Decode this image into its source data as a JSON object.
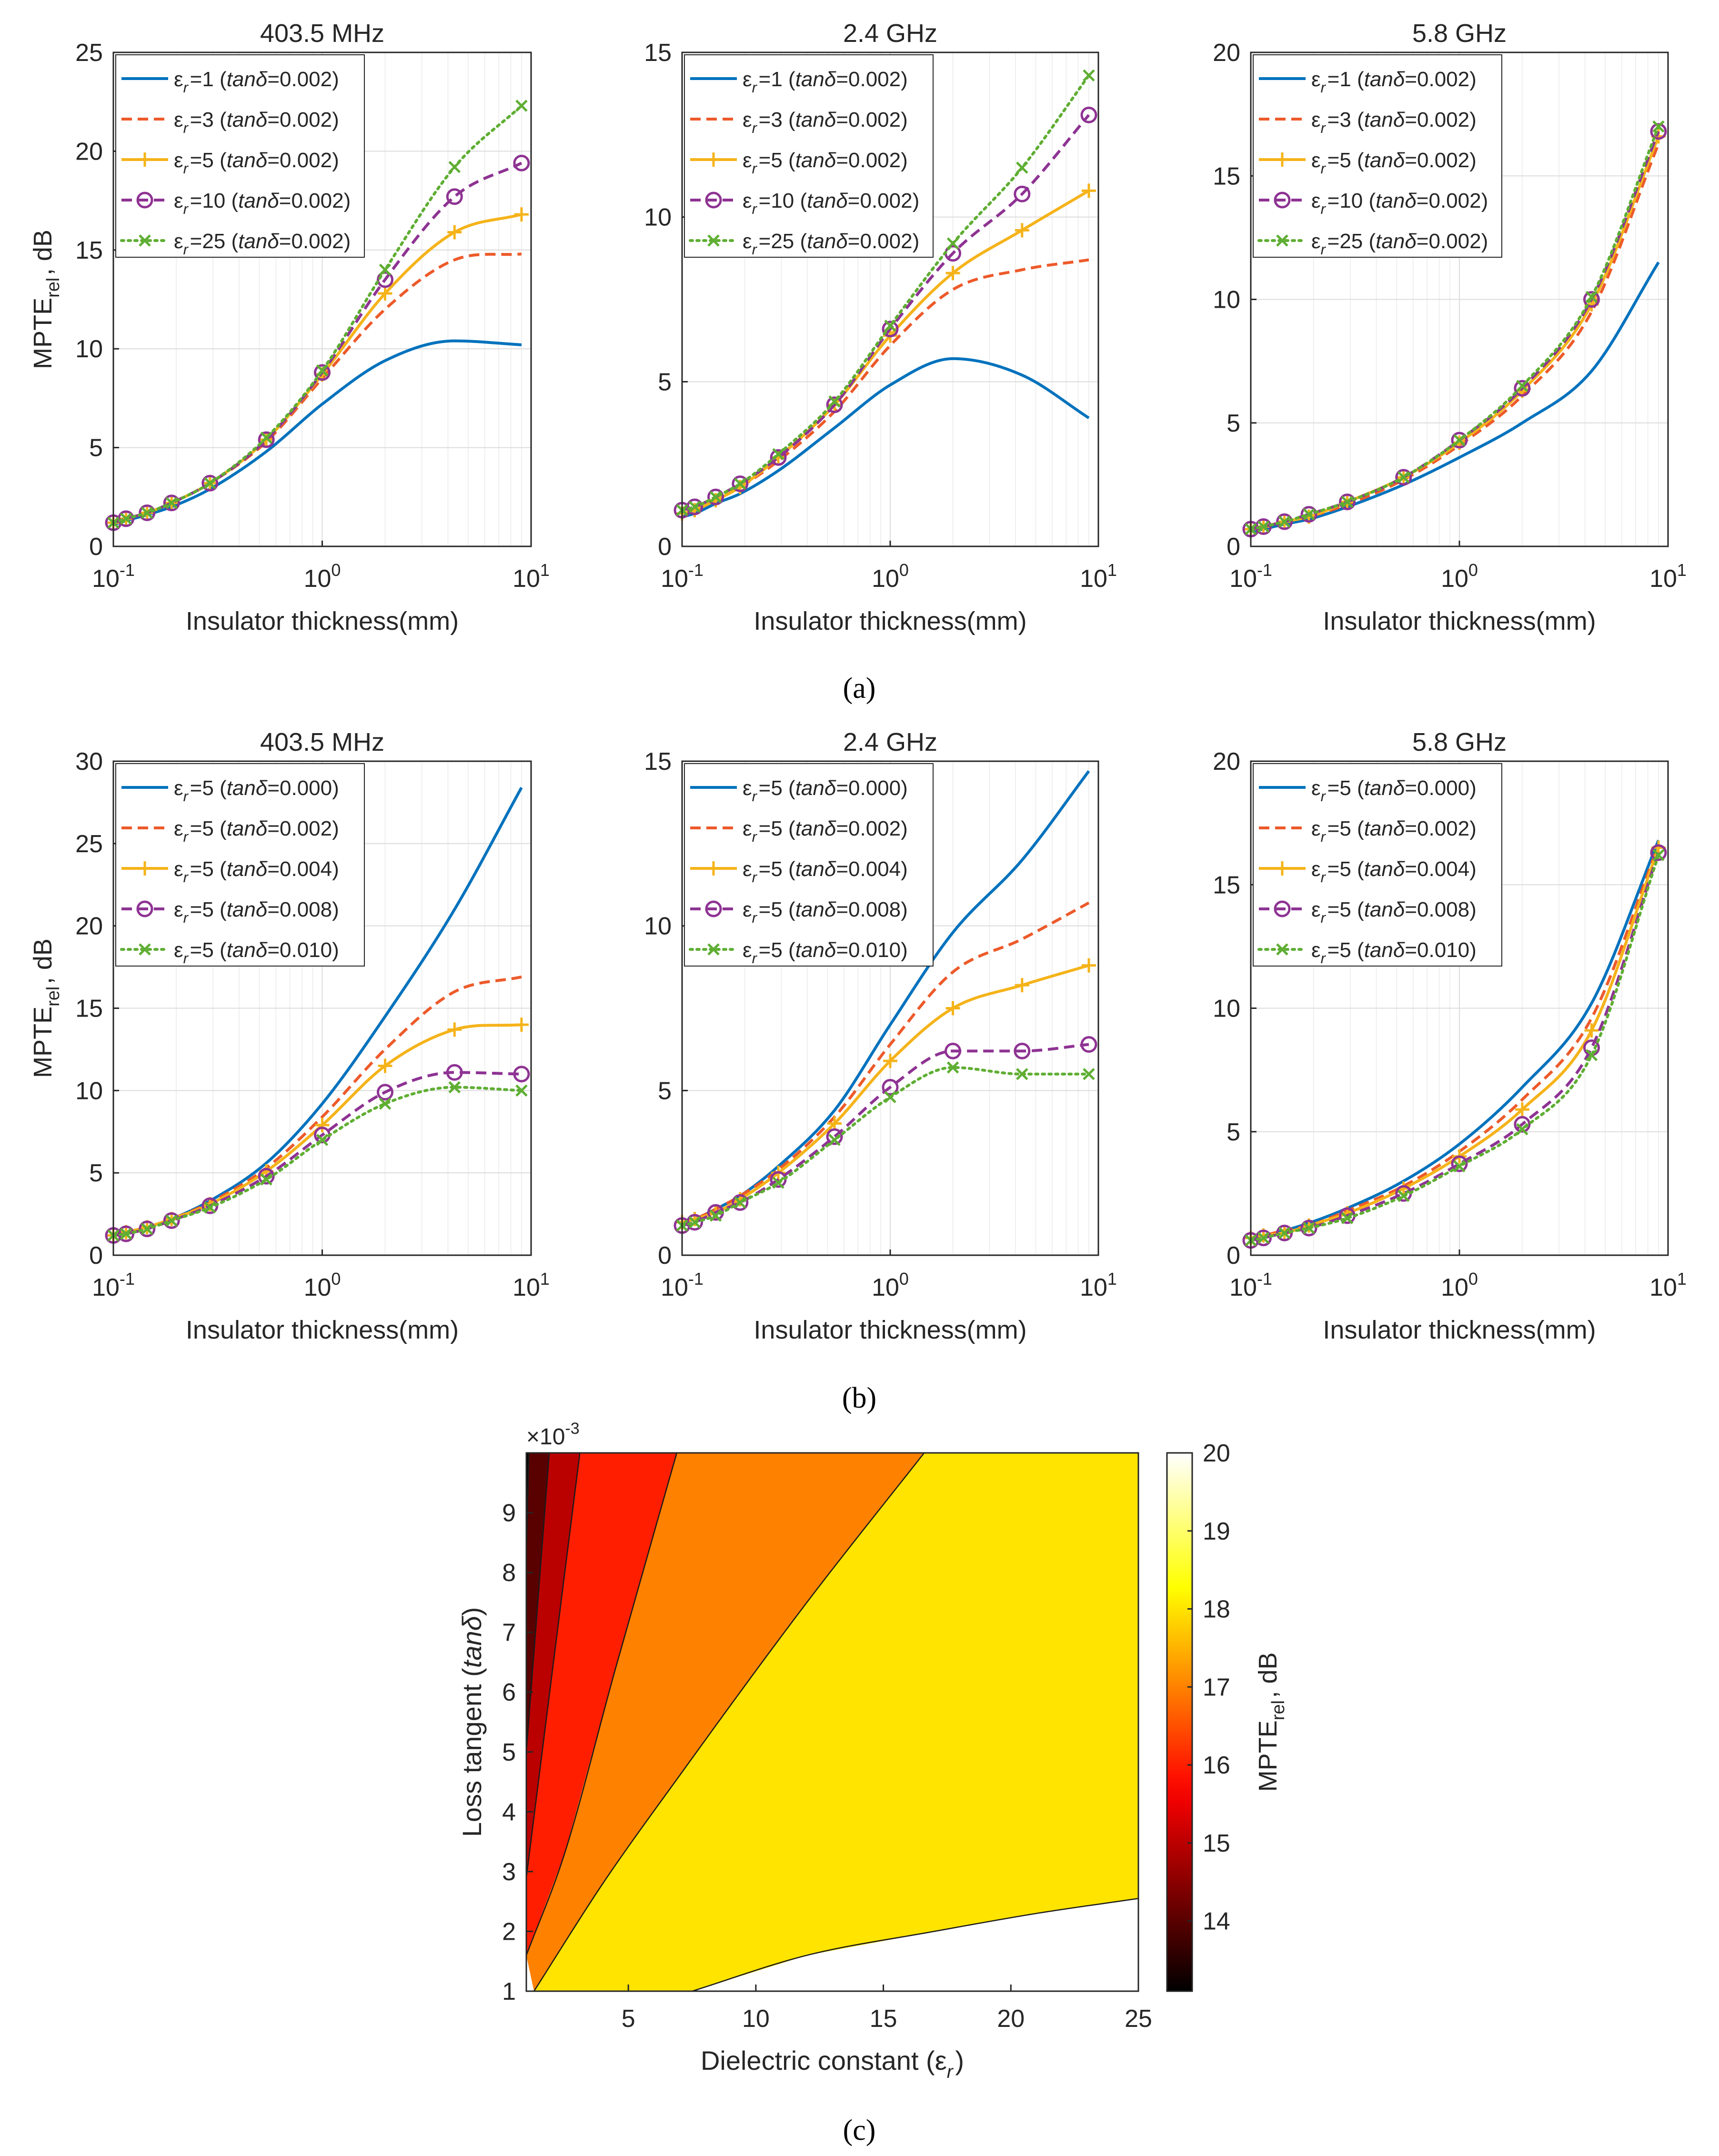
{
  "captions": {
    "a": "(a)",
    "b": "(b)",
    "c": "(c)"
  },
  "colors": {
    "blue": "#0072BD",
    "orange": "#ED5A2A",
    "gold": "#F5B31A",
    "purple": "#8E3393",
    "green": "#5FAE33"
  },
  "chart_data": [
    {
      "type": "line",
      "title": "403.5 MHz",
      "xlabel": "Insulator thickness(mm)",
      "ylabel": "MPTE_rel, dB",
      "xscale": "log",
      "xlim": [
        0.1,
        10
      ],
      "ylim": [
        0,
        25
      ],
      "yticks": [
        0,
        5,
        10,
        15,
        20,
        25
      ],
      "xtick_labels": [
        "10^-1",
        "10^0",
        "10^1"
      ],
      "grid": true,
      "legend": "top-left",
      "x": [
        0.1,
        0.115,
        0.145,
        0.19,
        0.29,
        0.54,
        1.0,
        2.0,
        4.3,
        9.0
      ],
      "series": [
        {
          "name": "εr=1 (tanδ=0.002)",
          "style": "solid",
          "marker": "none",
          "color": "#0072BD",
          "values": [
            1.1,
            1.3,
            1.6,
            2.0,
            2.9,
            4.8,
            7.2,
            9.4,
            10.4,
            10.2
          ]
        },
        {
          "name": "εr=3 (tanδ=0.002)",
          "style": "dashed",
          "marker": "none",
          "color": "#ED5A2A",
          "values": [
            1.2,
            1.4,
            1.7,
            2.2,
            3.2,
            5.3,
            8.5,
            12.0,
            14.5,
            14.8
          ]
        },
        {
          "name": "εr=5 (tanδ=0.002)",
          "style": "solid",
          "marker": "plus",
          "color": "#F5B31A",
          "values": [
            1.2,
            1.4,
            1.7,
            2.2,
            3.2,
            5.4,
            8.7,
            12.8,
            15.9,
            16.8
          ]
        },
        {
          "name": "εr=10 (tanδ=0.002)",
          "style": "dashed",
          "marker": "circle",
          "color": "#8E3393",
          "values": [
            1.2,
            1.4,
            1.7,
            2.2,
            3.2,
            5.4,
            8.8,
            13.5,
            17.7,
            19.4
          ]
        },
        {
          "name": "εr=25 (tanδ=0.002)",
          "style": "dotted",
          "marker": "x",
          "color": "#5FAE33",
          "values": [
            1.2,
            1.4,
            1.7,
            2.2,
            3.2,
            5.5,
            8.9,
            14.0,
            19.2,
            22.3
          ]
        }
      ]
    },
    {
      "type": "line",
      "title": "2.4 GHz",
      "xlabel": "Insulator thickness(mm)",
      "ylabel": "",
      "xscale": "log",
      "xlim": [
        0.1,
        10
      ],
      "ylim": [
        0,
        15
      ],
      "yticks": [
        0,
        5,
        10,
        15
      ],
      "xtick_labels": [
        "10^-1",
        "10^0",
        "10^1"
      ],
      "grid": true,
      "legend": "top-left",
      "x": [
        0.1,
        0.115,
        0.145,
        0.19,
        0.29,
        0.54,
        1.0,
        2.0,
        4.3,
        9.0
      ],
      "series": [
        {
          "name": "εr=1 (tanδ=0.002)",
          "style": "solid",
          "marker": "none",
          "color": "#0072BD",
          "values": [
            0.9,
            1.0,
            1.3,
            1.6,
            2.3,
            3.6,
            4.9,
            5.7,
            5.2,
            3.9
          ]
        },
        {
          "name": "εr=3 (tanδ=0.002)",
          "style": "dashed",
          "marker": "none",
          "color": "#ED5A2A",
          "values": [
            1.0,
            1.1,
            1.4,
            1.8,
            2.6,
            4.1,
            6.1,
            7.8,
            8.4,
            8.7
          ]
        },
        {
          "name": "εr=5 (tanδ=0.002)",
          "style": "solid",
          "marker": "plus",
          "color": "#F5B31A",
          "values": [
            1.0,
            1.1,
            1.4,
            1.8,
            2.7,
            4.3,
            6.4,
            8.3,
            9.6,
            10.8
          ]
        },
        {
          "name": "εr=10 (tanδ=0.002)",
          "style": "dashed",
          "marker": "circle",
          "color": "#8E3393",
          "values": [
            1.1,
            1.2,
            1.5,
            1.9,
            2.7,
            4.3,
            6.6,
            8.9,
            10.7,
            13.1
          ]
        },
        {
          "name": "εr=25 (tanδ=0.002)",
          "style": "dotted",
          "marker": "x",
          "color": "#5FAE33",
          "values": [
            1.1,
            1.2,
            1.5,
            1.9,
            2.8,
            4.4,
            6.7,
            9.2,
            11.5,
            14.3
          ]
        }
      ]
    },
    {
      "type": "line",
      "title": "5.8 GHz",
      "xlabel": "Insulator thickness(mm)",
      "ylabel": "",
      "xscale": "log",
      "xlim": [
        0.1,
        10
      ],
      "ylim": [
        0,
        20
      ],
      "yticks": [
        0,
        5,
        10,
        15,
        20
      ],
      "xtick_labels": [
        "10^-1",
        "10^0",
        "10^1"
      ],
      "grid": true,
      "legend": "top-left",
      "x": [
        0.1,
        0.115,
        0.145,
        0.19,
        0.29,
        0.54,
        1.0,
        2.0,
        4.3,
        9.0
      ],
      "series": [
        {
          "name": "εr=1 (tanδ=0.002)",
          "style": "solid",
          "marker": "none",
          "color": "#0072BD",
          "values": [
            0.6,
            0.7,
            0.9,
            1.1,
            1.6,
            2.5,
            3.6,
            5.0,
            7.1,
            11.5
          ]
        },
        {
          "name": "εr=3 (tanδ=0.002)",
          "style": "dashed",
          "marker": "none",
          "color": "#ED5A2A",
          "values": [
            0.7,
            0.8,
            1.0,
            1.2,
            1.7,
            2.7,
            4.1,
            6.1,
            9.5,
            16.3
          ]
        },
        {
          "name": "εr=5 (tanδ=0.002)",
          "style": "solid",
          "marker": "plus",
          "color": "#F5B31A",
          "values": [
            0.7,
            0.8,
            1.0,
            1.2,
            1.8,
            2.8,
            4.2,
            6.3,
            9.8,
            16.6
          ]
        },
        {
          "name": "εr=10 (tanδ=0.002)",
          "style": "dashed",
          "marker": "circle",
          "color": "#8E3393",
          "values": [
            0.7,
            0.8,
            1.0,
            1.3,
            1.8,
            2.8,
            4.3,
            6.4,
            10.0,
            16.8
          ]
        },
        {
          "name": "εr=25 (tanδ=0.002)",
          "style": "dotted",
          "marker": "x",
          "color": "#5FAE33",
          "values": [
            0.7,
            0.8,
            1.0,
            1.3,
            1.8,
            2.8,
            4.3,
            6.5,
            10.1,
            17.0
          ]
        }
      ]
    },
    {
      "type": "line",
      "title": "403.5 MHz",
      "xlabel": "Insulator thickness(mm)",
      "ylabel": "MPTE_rel, dB",
      "xscale": "log",
      "xlim": [
        0.1,
        10
      ],
      "ylim": [
        0,
        30
      ],
      "yticks": [
        0,
        5,
        10,
        15,
        20,
        25,
        30
      ],
      "xtick_labels": [
        "10^-1",
        "10^0",
        "10^1"
      ],
      "grid": true,
      "legend": "top-left",
      "x": [
        0.1,
        0.115,
        0.145,
        0.19,
        0.29,
        0.54,
        1.0,
        2.0,
        4.3,
        9.0
      ],
      "series": [
        {
          "name": "εr=5 (tanδ=0.000)",
          "style": "solid",
          "marker": "none",
          "color": "#0072BD",
          "values": [
            1.2,
            1.4,
            1.7,
            2.2,
            3.3,
            5.6,
            9.2,
            14.5,
            21.0,
            28.4
          ]
        },
        {
          "name": "εr=5 (tanδ=0.002)",
          "style": "dashed",
          "marker": "none",
          "color": "#ED5A2A",
          "values": [
            1.2,
            1.4,
            1.7,
            2.2,
            3.2,
            5.3,
            8.4,
            12.5,
            16.0,
            16.9
          ]
        },
        {
          "name": "εr=5 (tanδ=0.004)",
          "style": "solid",
          "marker": "plus",
          "color": "#F5B31A",
          "values": [
            1.2,
            1.4,
            1.7,
            2.2,
            3.1,
            5.1,
            7.9,
            11.5,
            13.7,
            14.0
          ]
        },
        {
          "name": "εr=5 (tanδ=0.008)",
          "style": "dashed",
          "marker": "circle",
          "color": "#8E3393",
          "values": [
            1.2,
            1.3,
            1.6,
            2.1,
            3.0,
            4.8,
            7.3,
            9.9,
            11.1,
            11.0
          ]
        },
        {
          "name": "εr=5 (tanδ=0.010)",
          "style": "dotted",
          "marker": "x",
          "color": "#5FAE33",
          "values": [
            1.2,
            1.3,
            1.6,
            2.1,
            2.9,
            4.6,
            7.0,
            9.2,
            10.2,
            10.0
          ]
        }
      ]
    },
    {
      "type": "line",
      "title": "2.4 GHz",
      "xlabel": "Insulator thickness(mm)",
      "ylabel": "",
      "xscale": "log",
      "xlim": [
        0.1,
        10
      ],
      "ylim": [
        0,
        15
      ],
      "yticks": [
        0,
        5,
        10,
        15
      ],
      "xtick_labels": [
        "10^-1",
        "10^0",
        "10^1"
      ],
      "grid": true,
      "legend": "top-left",
      "x": [
        0.1,
        0.115,
        0.145,
        0.19,
        0.29,
        0.54,
        1.0,
        2.0,
        4.3,
        9.0
      ],
      "series": [
        {
          "name": "εr=5 (tanδ=0.000)",
          "style": "solid",
          "marker": "none",
          "color": "#0072BD",
          "values": [
            1.0,
            1.1,
            1.4,
            1.8,
            2.7,
            4.4,
            7.0,
            9.8,
            12.0,
            14.7
          ]
        },
        {
          "name": "εr=5 (tanδ=0.002)",
          "style": "dashed",
          "marker": "none",
          "color": "#ED5A2A",
          "values": [
            1.0,
            1.1,
            1.4,
            1.8,
            2.6,
            4.2,
            6.4,
            8.6,
            9.6,
            10.7
          ]
        },
        {
          "name": "εr=5 (tanδ=0.004)",
          "style": "solid",
          "marker": "plus",
          "color": "#F5B31A",
          "values": [
            1.0,
            1.1,
            1.3,
            1.7,
            2.5,
            4.0,
            5.9,
            7.5,
            8.2,
            8.8
          ]
        },
        {
          "name": "εr=5 (tanδ=0.008)",
          "style": "dashed",
          "marker": "circle",
          "color": "#8E3393",
          "values": [
            0.9,
            1.0,
            1.3,
            1.6,
            2.3,
            3.6,
            5.1,
            6.2,
            6.2,
            6.4
          ]
        },
        {
          "name": "εr=5 (tanδ=0.010)",
          "style": "dotted",
          "marker": "x",
          "color": "#5FAE33",
          "values": [
            0.9,
            1.0,
            1.2,
            1.6,
            2.2,
            3.5,
            4.8,
            5.7,
            5.5,
            5.5
          ]
        }
      ]
    },
    {
      "type": "line",
      "title": "5.8 GHz",
      "xlabel": "Insulator thickness(mm)",
      "ylabel": "",
      "xscale": "log",
      "xlim": [
        0.1,
        10
      ],
      "ylim": [
        0,
        20
      ],
      "yticks": [
        0,
        5,
        10,
        15,
        20
      ],
      "xtick_labels": [
        "10^-1",
        "10^0",
        "10^1"
      ],
      "grid": true,
      "legend": "top-left",
      "x": [
        0.1,
        0.115,
        0.145,
        0.19,
        0.29,
        0.54,
        1.0,
        2.0,
        4.3,
        9.0
      ],
      "series": [
        {
          "name": "εr=5 (tanδ=0.000)",
          "style": "solid",
          "marker": "none",
          "color": "#0072BD",
          "values": [
            0.7,
            0.8,
            1.0,
            1.3,
            1.9,
            3.0,
            4.5,
            6.8,
            10.2,
            16.8
          ]
        },
        {
          "name": "εr=5 (tanδ=0.002)",
          "style": "dashed",
          "marker": "none",
          "color": "#ED5A2A",
          "values": [
            0.7,
            0.8,
            1.0,
            1.2,
            1.8,
            2.8,
            4.2,
            6.3,
            9.6,
            16.6
          ]
        },
        {
          "name": "εr=5 (tanδ=0.004)",
          "style": "solid",
          "marker": "plus",
          "color": "#F5B31A",
          "values": [
            0.7,
            0.8,
            0.9,
            1.2,
            1.7,
            2.7,
            4.0,
            5.9,
            9.1,
            16.5
          ]
        },
        {
          "name": "εr=5 (tanδ=0.008)",
          "style": "dashed",
          "marker": "circle",
          "color": "#8E3393",
          "values": [
            0.6,
            0.7,
            0.9,
            1.1,
            1.6,
            2.5,
            3.7,
            5.3,
            8.4,
            16.3
          ]
        },
        {
          "name": "εr=5 (tanδ=0.010)",
          "style": "dotted",
          "marker": "x",
          "color": "#5FAE33",
          "values": [
            0.6,
            0.7,
            0.9,
            1.1,
            1.5,
            2.4,
            3.6,
            5.1,
            8.1,
            16.2
          ]
        }
      ]
    },
    {
      "type": "heatmap",
      "xlabel": "Dielectric constant (εr)",
      "ylabel": "Loss tangent (tanδ)",
      "xlim": [
        1,
        25
      ],
      "ylim": [
        1,
        10
      ],
      "xticks": [
        5,
        10,
        15,
        20,
        25
      ],
      "yticks": [
        1,
        2,
        3,
        4,
        5,
        6,
        7,
        8,
        9
      ],
      "y_multiplier": "×10^-3",
      "colorbar": {
        "label": "MPTE_rel, dB",
        "range": [
          13.1,
          20
        ],
        "ticks": [
          14,
          15,
          16,
          17,
          18,
          19,
          20
        ],
        "placement": "right"
      },
      "levels": [
        13.5,
        14.5,
        15.5,
        16.5,
        17.5,
        18.5,
        19.5
      ],
      "contour_lines": [
        {
          "level": 13.5,
          "points": [
            [
              1.1,
              10
            ],
            [
              1.0,
              8.3
            ]
          ]
        },
        {
          "level": 14.5,
          "points": [
            [
              1.9,
              10
            ],
            [
              1.0,
              5.0
            ]
          ]
        },
        {
          "level": 15.5,
          "points": [
            [
              3.1,
              10
            ],
            [
              1.0,
              2.9
            ]
          ]
        },
        {
          "level": 16.5,
          "points": [
            [
              6.9,
              10
            ],
            [
              4.5,
              6.4
            ],
            [
              2.5,
              3.3
            ],
            [
              1.0,
              1.6
            ]
          ]
        },
        {
          "level": 17.5,
          "points": [
            [
              16.6,
              10
            ],
            [
              12.0,
              7.5
            ],
            [
              7.0,
              4.6
            ],
            [
              4.0,
              2.8
            ],
            [
              1.3,
              1.0
            ]
          ]
        },
        {
          "level": 18.5,
          "points": [
            [
              7.5,
              1.0
            ],
            [
              12.0,
              1.6
            ],
            [
              17.0,
              2.0
            ],
            [
              21.0,
              2.3
            ],
            [
              25.0,
              2.55
            ]
          ]
        }
      ]
    }
  ]
}
